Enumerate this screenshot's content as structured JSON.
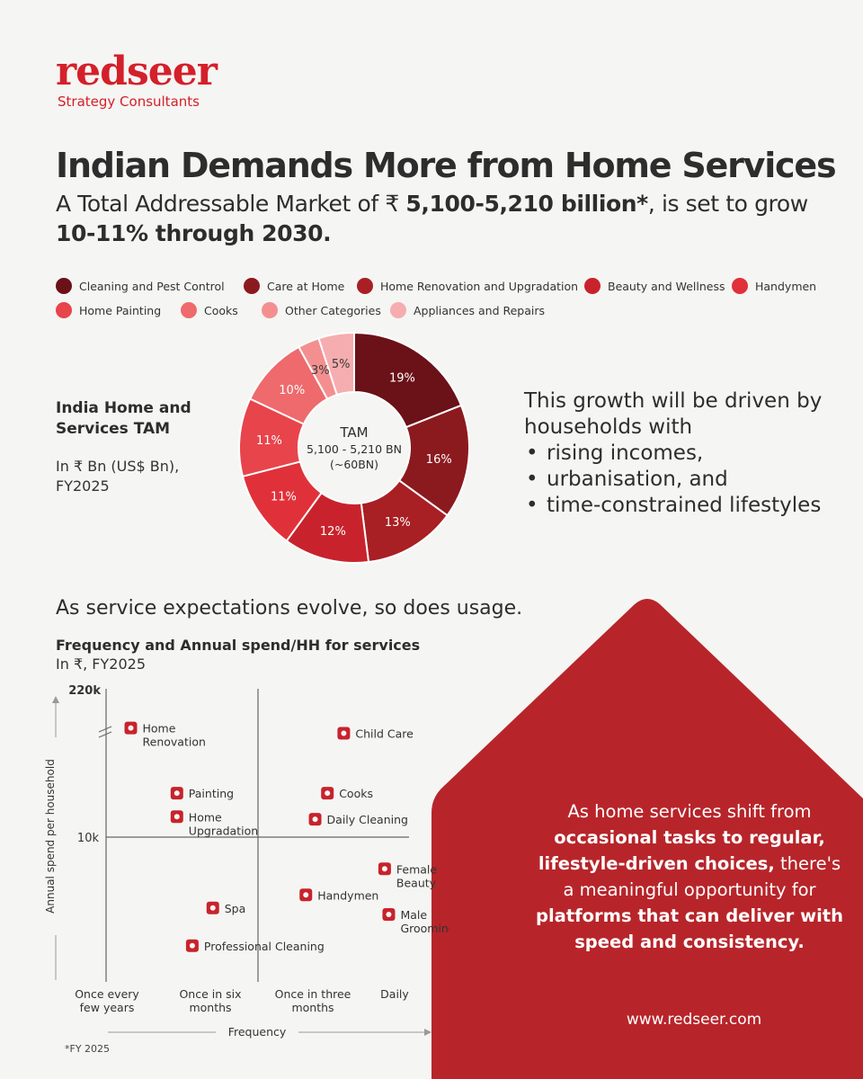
{
  "brand": {
    "name": "redseer",
    "tagline": "Strategy Consultants",
    "url": "www.redseer.com"
  },
  "headline": {
    "title": "Indian Demands More from Home Services",
    "sub_pre": "A Total Addressable Market of ₹ ",
    "sub_bold1": "5,100-5,210 billion*",
    "sub_mid": ", is set to grow ",
    "sub_bold2": "10-11% through 2030."
  },
  "legend": [
    {
      "label": "Cleaning and Pest Control",
      "color": "#6b1118"
    },
    {
      "label": "Care at Home",
      "color": "#8b1a1f"
    },
    {
      "label": "Home Renovation and Upgradation",
      "color": "#a81f24"
    },
    {
      "label": "Beauty and Wellness",
      "color": "#c8232c"
    },
    {
      "label": "Handymen",
      "color": "#e0313a"
    },
    {
      "label": "Home Painting",
      "color": "#e8444b"
    },
    {
      "label": "Cooks",
      "color": "#ee6a6d"
    },
    {
      "label": "Other Categories",
      "color": "#f48f90"
    },
    {
      "label": "Appliances and Repairs",
      "color": "#f6adaf"
    }
  ],
  "tam_block": {
    "heading": "India Home and Services TAM",
    "unit": "In ₹ Bn (US$ Bn), FY2025"
  },
  "growth_block": {
    "intro": "This growth will be driven by households with",
    "bullets": [
      "rising incomes,",
      "urbanisation, and",
      "time-constrained lifestyles"
    ]
  },
  "usage_text": "As service expectations evolve, so does usage.",
  "freq_block": {
    "title": "Frequency and Annual spend/HH for services",
    "unit": "In ₹, FY2025"
  },
  "house_message": {
    "part1": "As home services shift from ",
    "part2": "occasional tasks to regular, lifestyle-driven choices,",
    "part3": " there's a meaningful opportunity ",
    "part4": "for ",
    "part5": "platforms that can deliver with speed and consistency."
  },
  "footnote": "*FY 2025",
  "chart_data": [
    {
      "type": "pie",
      "title": "India Home and Services TAM",
      "center_label": [
        "TAM",
        "5,100 - 5,210 BN",
        "(~60BN)"
      ],
      "categories": [
        "Cleaning and Pest Control",
        "Care at Home",
        "Home Renovation and Upgradation",
        "Beauty and Wellness",
        "Handymen",
        "Home Painting",
        "Cooks",
        "Other Categories",
        "Appliances and Repairs"
      ],
      "values": [
        19,
        16,
        13,
        12,
        11,
        11,
        10,
        3,
        5
      ],
      "value_labels": [
        "19%",
        "16%",
        "13%",
        "12%",
        "11%",
        "11%",
        "10%",
        "3%",
        "5%"
      ],
      "colors": [
        "#6b1118",
        "#8b1a1f",
        "#a81f24",
        "#c8232c",
        "#e0313a",
        "#e8444b",
        "#ee6a6d",
        "#f48f90",
        "#f6adaf"
      ]
    },
    {
      "type": "scatter",
      "title": "Frequency and Annual spend/HH for services",
      "xlabel": "Frequency",
      "ylabel": "Annual spend per household",
      "x_ticks": [
        [
          "Once every",
          "few years"
        ],
        [
          "Once in six",
          "months"
        ],
        [
          "Once in three",
          "months"
        ],
        [
          "Daily"
        ]
      ],
      "y_ticks": [
        "220k",
        "10k"
      ],
      "points": [
        {
          "label": [
            "Home",
            "Renovation"
          ],
          "x": 0.25,
          "y": 0.83,
          "icon": "toolbox-icon"
        },
        {
          "label": [
            "Child Care"
          ],
          "x": 2.4,
          "y": 0.79,
          "icon": "baby-icon"
        },
        {
          "label": [
            "Painting"
          ],
          "x": 0.7,
          "y": 0.33,
          "icon": "paint-roller-icon"
        },
        {
          "label": [
            "Cooks"
          ],
          "x": 2.2,
          "y": 0.33,
          "icon": "cooking-pan-icon"
        },
        {
          "label": [
            "Home",
            "Upgradation"
          ],
          "x": 0.7,
          "y": 0.15,
          "icon": "worker-icon"
        },
        {
          "label": [
            "Daily Cleaning"
          ],
          "x": 2.05,
          "y": 0.13,
          "icon": "cleaner-icon"
        },
        {
          "label": [
            "Female",
            "Beauty"
          ],
          "x": 2.9,
          "y": -0.25,
          "icon": "female-face-icon"
        },
        {
          "label": [
            "Handymen"
          ],
          "x": 1.95,
          "y": -0.45,
          "icon": "handyman-icon"
        },
        {
          "label": [
            "Spa"
          ],
          "x": 1.05,
          "y": -0.55,
          "icon": "spa-stones-icon"
        },
        {
          "label": [
            "Male",
            "Grooming"
          ],
          "x": 2.95,
          "y": -0.6,
          "icon": "male-face-icon"
        },
        {
          "label": [
            "Professional Cleaning"
          ],
          "x": 0.85,
          "y": -0.84,
          "icon": "spray-bottle-icon"
        }
      ]
    }
  ]
}
